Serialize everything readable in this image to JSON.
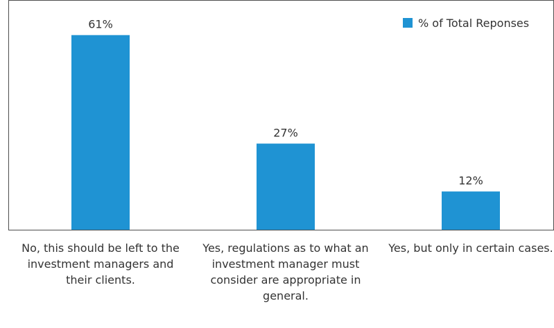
{
  "chart_data": {
    "type": "bar",
    "categories": [
      "No, this should be left to the investment managers and their clients.",
      "Yes, regulations as to what an investment manager must consider are appropriate in general.",
      "Yes, but only in certain cases."
    ],
    "series": [
      {
        "name": "% of Total Reponses",
        "values": [
          61,
          27,
          12
        ]
      }
    ],
    "data_labels": [
      "61%",
      "27%",
      "12%"
    ],
    "ylim": [
      0,
      72
    ],
    "grid": false,
    "legend": "top-right",
    "colors": {
      "bar": "#1f93d3",
      "frame": "#4d4d4d"
    }
  }
}
